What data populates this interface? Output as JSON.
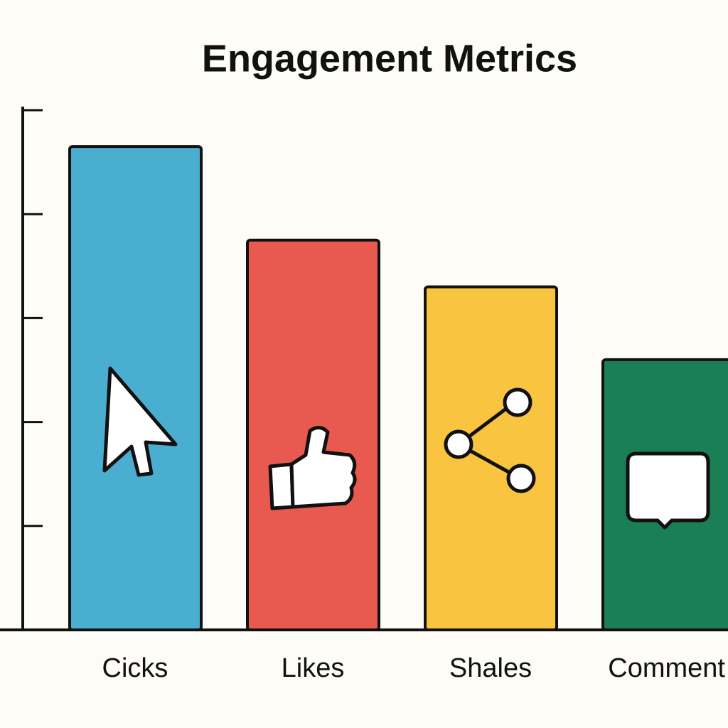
{
  "chart_data": {
    "type": "bar",
    "title": "Engagement Metrics",
    "categories": [
      "Cicks",
      "Likes",
      "Shales",
      "Comment"
    ],
    "values": [
      93,
      75,
      66,
      52
    ],
    "colors": [
      "#4aaed0",
      "#e85a4f",
      "#f9c440",
      "#1b7f55"
    ],
    "ylim": [
      0,
      100
    ],
    "yticks": [
      0,
      20,
      40,
      60,
      80,
      100
    ],
    "grid": false
  }
}
